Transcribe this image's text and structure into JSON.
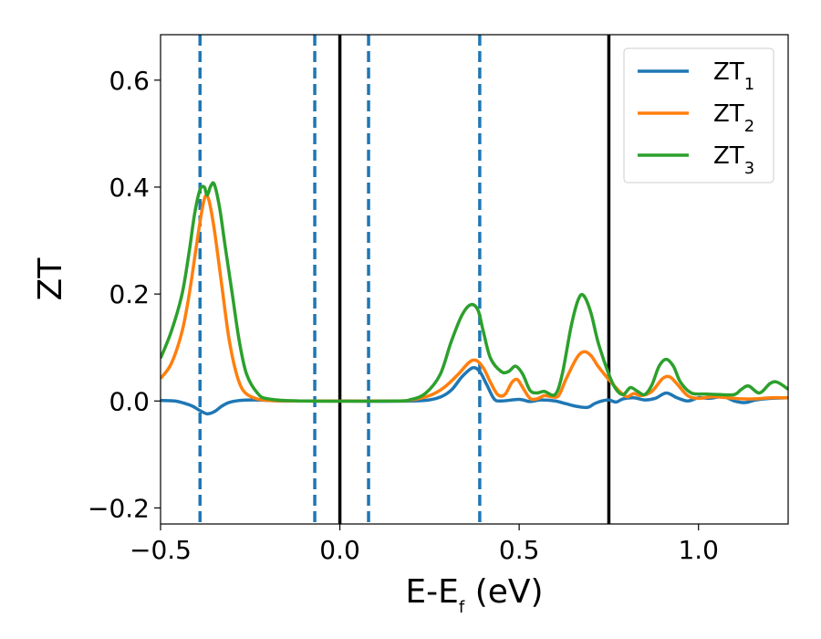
{
  "chart_data": {
    "type": "line",
    "xlabel": "E-E",
    "xlabel_sub": "f",
    "xlabel_unit": " (eV)",
    "ylabel": "ZT",
    "xlim": [
      -0.5,
      1.25
    ],
    "ylim": [
      -0.23,
      0.685
    ],
    "xticks": [
      -0.5,
      0.0,
      0.5,
      1.0
    ],
    "xtick_labels": [
      "−0.5",
      "0.0",
      "0.5",
      "1.0"
    ],
    "yticks": [
      -0.2,
      0.0,
      0.2,
      0.4,
      0.6
    ],
    "ytick_labels": [
      "−0.2",
      "0.0",
      "0.2",
      "0.4",
      "0.6"
    ],
    "grid": false,
    "legend_position": "top-right",
    "series": [
      {
        "name": "ZT",
        "name_sub": "1",
        "color": "#1f77b4",
        "points": [
          [
            -0.5,
            0.001
          ],
          [
            -0.46,
            0.0
          ],
          [
            -0.43,
            -0.005
          ],
          [
            -0.41,
            -0.01
          ],
          [
            -0.39,
            -0.018
          ],
          [
            -0.37,
            -0.024
          ],
          [
            -0.35,
            -0.02
          ],
          [
            -0.33,
            -0.01
          ],
          [
            -0.31,
            -0.003
          ],
          [
            -0.28,
            0.001
          ],
          [
            -0.24,
            0.002
          ],
          [
            -0.2,
            0.001
          ],
          [
            -0.15,
            0.0
          ],
          [
            0.0,
            0.0
          ],
          [
            0.2,
            0.0
          ],
          [
            0.27,
            0.005
          ],
          [
            0.31,
            0.02
          ],
          [
            0.34,
            0.045
          ],
          [
            0.37,
            0.062
          ],
          [
            0.39,
            0.055
          ],
          [
            0.41,
            0.03
          ],
          [
            0.43,
            0.004
          ],
          [
            0.45,
            0.0
          ],
          [
            0.5,
            0.003
          ],
          [
            0.53,
            -0.001
          ],
          [
            0.56,
            0.002
          ],
          [
            0.6,
            0.0
          ],
          [
            0.63,
            -0.005
          ],
          [
            0.66,
            -0.01
          ],
          [
            0.69,
            -0.012
          ],
          [
            0.71,
            -0.005
          ],
          [
            0.73,
            0.0
          ],
          [
            0.75,
            0.002
          ],
          [
            0.77,
            -0.002
          ],
          [
            0.79,
            0.004
          ],
          [
            0.82,
            0.006
          ],
          [
            0.85,
            0.002
          ],
          [
            0.88,
            0.005
          ],
          [
            0.91,
            0.015
          ],
          [
            0.94,
            0.006
          ],
          [
            0.97,
            0.0
          ],
          [
            1.0,
            0.006
          ],
          [
            1.03,
            0.005
          ],
          [
            1.07,
            0.008
          ],
          [
            1.1,
            0.0
          ],
          [
            1.13,
            -0.003
          ],
          [
            1.16,
            0.002
          ],
          [
            1.2,
            0.005
          ],
          [
            1.25,
            0.006
          ]
        ]
      },
      {
        "name": "ZT",
        "name_sub": "2",
        "color": "#ff7f0e",
        "points": [
          [
            -0.5,
            0.042
          ],
          [
            -0.47,
            0.07
          ],
          [
            -0.44,
            0.13
          ],
          [
            -0.42,
            0.2
          ],
          [
            -0.4,
            0.29
          ],
          [
            -0.385,
            0.355
          ],
          [
            -0.375,
            0.383
          ],
          [
            -0.365,
            0.375
          ],
          [
            -0.35,
            0.32
          ],
          [
            -0.33,
            0.22
          ],
          [
            -0.31,
            0.12
          ],
          [
            -0.29,
            0.055
          ],
          [
            -0.27,
            0.02
          ],
          [
            -0.24,
            0.006
          ],
          [
            -0.2,
            0.001
          ],
          [
            -0.1,
            0.0
          ],
          [
            0.15,
            0.0
          ],
          [
            0.2,
            0.002
          ],
          [
            0.25,
            0.01
          ],
          [
            0.29,
            0.025
          ],
          [
            0.33,
            0.05
          ],
          [
            0.36,
            0.072
          ],
          [
            0.38,
            0.076
          ],
          [
            0.4,
            0.062
          ],
          [
            0.42,
            0.035
          ],
          [
            0.44,
            0.012
          ],
          [
            0.46,
            0.012
          ],
          [
            0.48,
            0.035
          ],
          [
            0.495,
            0.04
          ],
          [
            0.51,
            0.025
          ],
          [
            0.53,
            0.005
          ],
          [
            0.55,
            0.004
          ],
          [
            0.57,
            0.01
          ],
          [
            0.59,
            0.008
          ],
          [
            0.61,
            0.01
          ],
          [
            0.63,
            0.04
          ],
          [
            0.66,
            0.08
          ],
          [
            0.68,
            0.092
          ],
          [
            0.7,
            0.085
          ],
          [
            0.72,
            0.065
          ],
          [
            0.75,
            0.04
          ],
          [
            0.78,
            0.018
          ],
          [
            0.8,
            0.008
          ],
          [
            0.82,
            0.014
          ],
          [
            0.84,
            0.01
          ],
          [
            0.87,
            0.018
          ],
          [
            0.9,
            0.042
          ],
          [
            0.92,
            0.045
          ],
          [
            0.94,
            0.032
          ],
          [
            0.97,
            0.01
          ],
          [
            1.0,
            0.005
          ],
          [
            1.04,
            0.008
          ],
          [
            1.08,
            0.006
          ],
          [
            1.12,
            0.004
          ],
          [
            1.16,
            0.004
          ],
          [
            1.2,
            0.006
          ],
          [
            1.25,
            0.006
          ]
        ]
      },
      {
        "name": "ZT",
        "name_sub": "3",
        "color": "#2ca02c",
        "points": [
          [
            -0.5,
            0.08
          ],
          [
            -0.47,
            0.13
          ],
          [
            -0.44,
            0.2
          ],
          [
            -0.42,
            0.28
          ],
          [
            -0.405,
            0.35
          ],
          [
            -0.39,
            0.395
          ],
          [
            -0.378,
            0.4
          ],
          [
            -0.37,
            0.385
          ],
          [
            -0.36,
            0.402
          ],
          [
            -0.35,
            0.405
          ],
          [
            -0.335,
            0.36
          ],
          [
            -0.32,
            0.29
          ],
          [
            -0.3,
            0.2
          ],
          [
            -0.28,
            0.11
          ],
          [
            -0.26,
            0.05
          ],
          [
            -0.23,
            0.015
          ],
          [
            -0.2,
            0.004
          ],
          [
            -0.1,
            0.0
          ],
          [
            0.15,
            0.0
          ],
          [
            0.2,
            0.003
          ],
          [
            0.24,
            0.015
          ],
          [
            0.28,
            0.05
          ],
          [
            0.31,
            0.11
          ],
          [
            0.34,
            0.16
          ],
          [
            0.365,
            0.18
          ],
          [
            0.385,
            0.17
          ],
          [
            0.4,
            0.13
          ],
          [
            0.42,
            0.08
          ],
          [
            0.45,
            0.055
          ],
          [
            0.47,
            0.055
          ],
          [
            0.49,
            0.065
          ],
          [
            0.51,
            0.05
          ],
          [
            0.53,
            0.02
          ],
          [
            0.55,
            0.015
          ],
          [
            0.57,
            0.018
          ],
          [
            0.6,
            0.012
          ],
          [
            0.62,
            0.05
          ],
          [
            0.645,
            0.14
          ],
          [
            0.665,
            0.19
          ],
          [
            0.68,
            0.197
          ],
          [
            0.7,
            0.165
          ],
          [
            0.72,
            0.11
          ],
          [
            0.75,
            0.05
          ],
          [
            0.77,
            0.022
          ],
          [
            0.79,
            0.012
          ],
          [
            0.81,
            0.025
          ],
          [
            0.83,
            0.018
          ],
          [
            0.85,
            0.012
          ],
          [
            0.87,
            0.03
          ],
          [
            0.89,
            0.065
          ],
          [
            0.91,
            0.078
          ],
          [
            0.93,
            0.065
          ],
          [
            0.95,
            0.035
          ],
          [
            0.98,
            0.015
          ],
          [
            1.02,
            0.013
          ],
          [
            1.06,
            0.012
          ],
          [
            1.1,
            0.012
          ],
          [
            1.12,
            0.022
          ],
          [
            1.14,
            0.028
          ],
          [
            1.17,
            0.015
          ],
          [
            1.2,
            0.033
          ],
          [
            1.22,
            0.035
          ],
          [
            1.25,
            0.022
          ]
        ]
      }
    ],
    "vlines_dashed": {
      "color": "#1f77b4",
      "x": [
        -0.39,
        -0.07,
        0.08,
        0.39
      ]
    },
    "vlines_solid": {
      "color": "#000000",
      "x": [
        0.0,
        0.75
      ]
    }
  }
}
